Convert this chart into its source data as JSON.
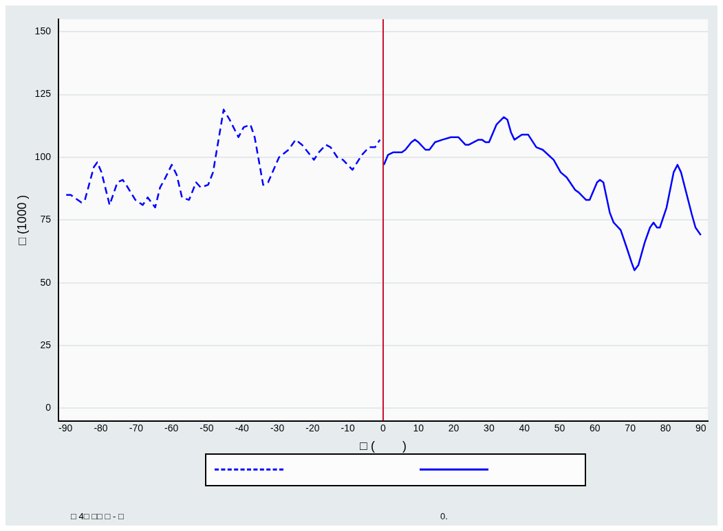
{
  "chart_data": {
    "type": "line",
    "xlabel": "□ (        )",
    "ylabel": "□ (1000 )",
    "annotations": [
      "□ 4□ □□ □ - □",
      "0."
    ],
    "series": [
      {
        "color": "#0000ff",
        "line_style": "dashed",
        "x": [
          -89.8,
          -88.5,
          -85.5,
          -84.5,
          -82,
          -81,
          -79.8,
          -77.5,
          -75.3,
          -73.8,
          -72.8,
          -70.2,
          -68.1,
          -66.7,
          -64.6,
          -63.2,
          -62,
          -59.9,
          -58.5,
          -57,
          -55,
          -53,
          -51.7,
          -49.6,
          -48.2,
          -45.2,
          -43.5,
          -41,
          -39.5,
          -37.6,
          -36.4,
          -34,
          -32.6,
          -29.5,
          -26.8,
          -24.8,
          -23,
          -19.6,
          -18.2,
          -16.2,
          -14.9,
          -13,
          -11.4,
          -8.7,
          -6,
          -4,
          -2.3,
          -0.9
        ],
        "values": [
          85,
          85,
          82,
          83,
          96,
          98,
          94,
          81,
          90,
          91,
          89,
          83,
          81,
          84,
          80,
          88,
          91,
          97,
          93,
          84,
          83,
          90,
          88,
          89,
          94,
          119,
          115,
          108,
          112,
          113,
          108,
          89,
          90,
          100,
          103,
          107,
          105,
          99,
          102,
          105,
          104,
          100,
          99,
          95,
          101,
          104,
          104,
          107
        ]
      },
      {
        "color": "#0000ff",
        "line_style": "solid",
        "x": [
          0.2,
          1.4,
          2.9,
          5.3,
          6.3,
          8,
          9,
          10,
          12,
          13.1,
          14.7,
          16.8,
          19.2,
          20.2,
          21.3,
          23.3,
          24.3,
          27,
          28,
          29,
          30,
          32.1,
          34.2,
          35.2,
          36.2,
          37.2,
          39.3,
          41.1,
          43.4,
          45.2,
          48.3,
          50.3,
          52,
          54.4,
          55.4,
          57.5,
          58.5,
          60.6,
          61.4,
          62.4,
          64.2,
          65.3,
          67.3,
          69,
          70.4,
          71.2,
          72.3,
          74.1,
          75.6,
          76.6,
          77.6,
          78.4,
          80.3,
          82.3,
          83.4,
          84.4,
          87.5,
          88.5,
          90
        ],
        "values": [
          97,
          101,
          102,
          102,
          103,
          106,
          107,
          106,
          103,
          103,
          106,
          107,
          108,
          108,
          108,
          105,
          105,
          107,
          107,
          106,
          106,
          113,
          116,
          115,
          110,
          107,
          109,
          109,
          104,
          103,
          99,
          94,
          92,
          87,
          86,
          83,
          83,
          90,
          91,
          90,
          78,
          74,
          71,
          64,
          58,
          55,
          57,
          66,
          72,
          74,
          72,
          72,
          80,
          94,
          97,
          94,
          77,
          72,
          69
        ]
      }
    ],
    "xlim": [
      -92,
      92
    ],
    "xticks": [
      -90,
      -80,
      -70,
      -60,
      -50,
      -40,
      -30,
      -20,
      -10,
      0,
      10,
      20,
      30,
      40,
      50,
      60,
      70,
      80,
      90
    ],
    "ylim": [
      -5,
      155
    ],
    "yticks": [
      0,
      25,
      50,
      75,
      100,
      125,
      150
    ],
    "ref_lines": [
      {
        "axis": "x",
        "value": 0,
        "color": "#c8102e"
      }
    ],
    "grid": "y"
  }
}
